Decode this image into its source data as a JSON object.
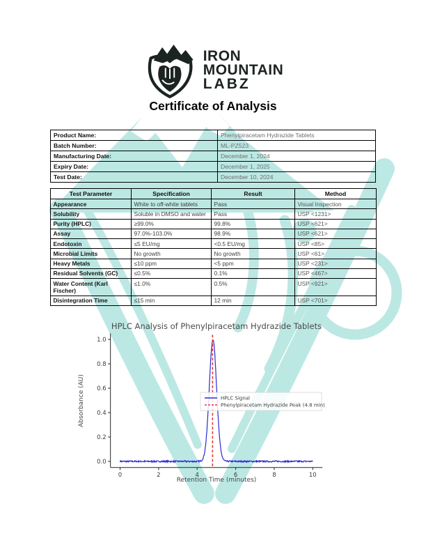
{
  "brand": {
    "line1": "IRON",
    "line2": "MOUNTAIN",
    "line3": "LABZ"
  },
  "document_title": "Certificate of Analysis",
  "product_info": {
    "rows": [
      {
        "label": "Product Name:",
        "value": "Phenylpiracetam Hydrazide Tablets"
      },
      {
        "label": "Batch Number:",
        "value": "ML-PZ523"
      },
      {
        "label": "Manufacturing Date:",
        "value": "December 1, 2024"
      },
      {
        "label": "Expiry Date:",
        "value": "December 1, 2025"
      },
      {
        "label": "Test Date:",
        "value": "December 10, 2024"
      }
    ]
  },
  "results_table": {
    "headers": [
      "Test Parameter",
      "Specification",
      "Result",
      "Method"
    ],
    "rows": [
      {
        "parameter": "Appearance",
        "specification": "White to off-white tablets",
        "result": "Pass",
        "method": "Visual Inspection"
      },
      {
        "parameter": "Solubility",
        "specification": "Soluble in DMSO and water",
        "result": "Pass",
        "method": "USP <1231>"
      },
      {
        "parameter": "Purity (HPLC)",
        "specification": "≥99.0%",
        "result": "99.8%",
        "method": "USP <621>"
      },
      {
        "parameter": "Assay",
        "specification": "97.0%-103.0%",
        "result": "98.9%",
        "method": "USP <621>"
      },
      {
        "parameter": "Endotoxin",
        "specification": "≤5 EU/mg",
        "result": "<0.5 EU/mg",
        "method": "USP <85>"
      },
      {
        "parameter": "Microbial Limits",
        "specification": "No growth",
        "result": "No growth",
        "method": "USP <61>"
      },
      {
        "parameter": "Heavy Metals",
        "specification": "≤10 ppm",
        "result": "<5 ppm",
        "method": "USP <231>"
      },
      {
        "parameter": "Residual Solvents (GC)",
        "specification": "≤0.5%",
        "result": "0.1%",
        "method": "USP <467>"
      },
      {
        "parameter": "Water Content (Karl Fischer)",
        "specification": "≤1.0%",
        "result": "0.5%",
        "method": "USP <921>"
      },
      {
        "parameter": "Disintegration Time",
        "specification": "≤15 min",
        "result": "12 min",
        "method": "USP <701>"
      }
    ]
  },
  "chart_data": {
    "type": "line",
    "title": "HPLC Analysis of Phenylpiracetam Hydrazide Tablets",
    "xlabel": "Retention Time (minutes)",
    "ylabel": "Absorbance (AU)",
    "xlim": [
      -0.5,
      10.5
    ],
    "ylim": [
      -0.05,
      1.05
    ],
    "x_ticks": [
      0,
      2,
      4,
      6,
      8,
      10
    ],
    "y_ticks": [
      0.0,
      0.2,
      0.4,
      0.6,
      0.8,
      1.0
    ],
    "grid": false,
    "legend_position": "center-right",
    "series": [
      {
        "name": "HPLC Signal",
        "type": "gaussian-peak",
        "color": "#2a2ad0",
        "line_style": "solid",
        "x_range": [
          0,
          10
        ],
        "baseline_au": 0.0,
        "peak_center_min": 4.82,
        "peak_sigma_min": 0.19,
        "peak_height_au": 1.0,
        "noise_au": 0.012
      },
      {
        "name": "Phenylpiracetam Hydrazide Peak (4.8 min)",
        "type": "vline",
        "color": "#e43c36",
        "line_style": "dashed",
        "x": 4.8
      }
    ]
  },
  "colors": {
    "watermark": "#aee4df",
    "brand_ink": "#1b2420",
    "table_border": "#000000"
  }
}
